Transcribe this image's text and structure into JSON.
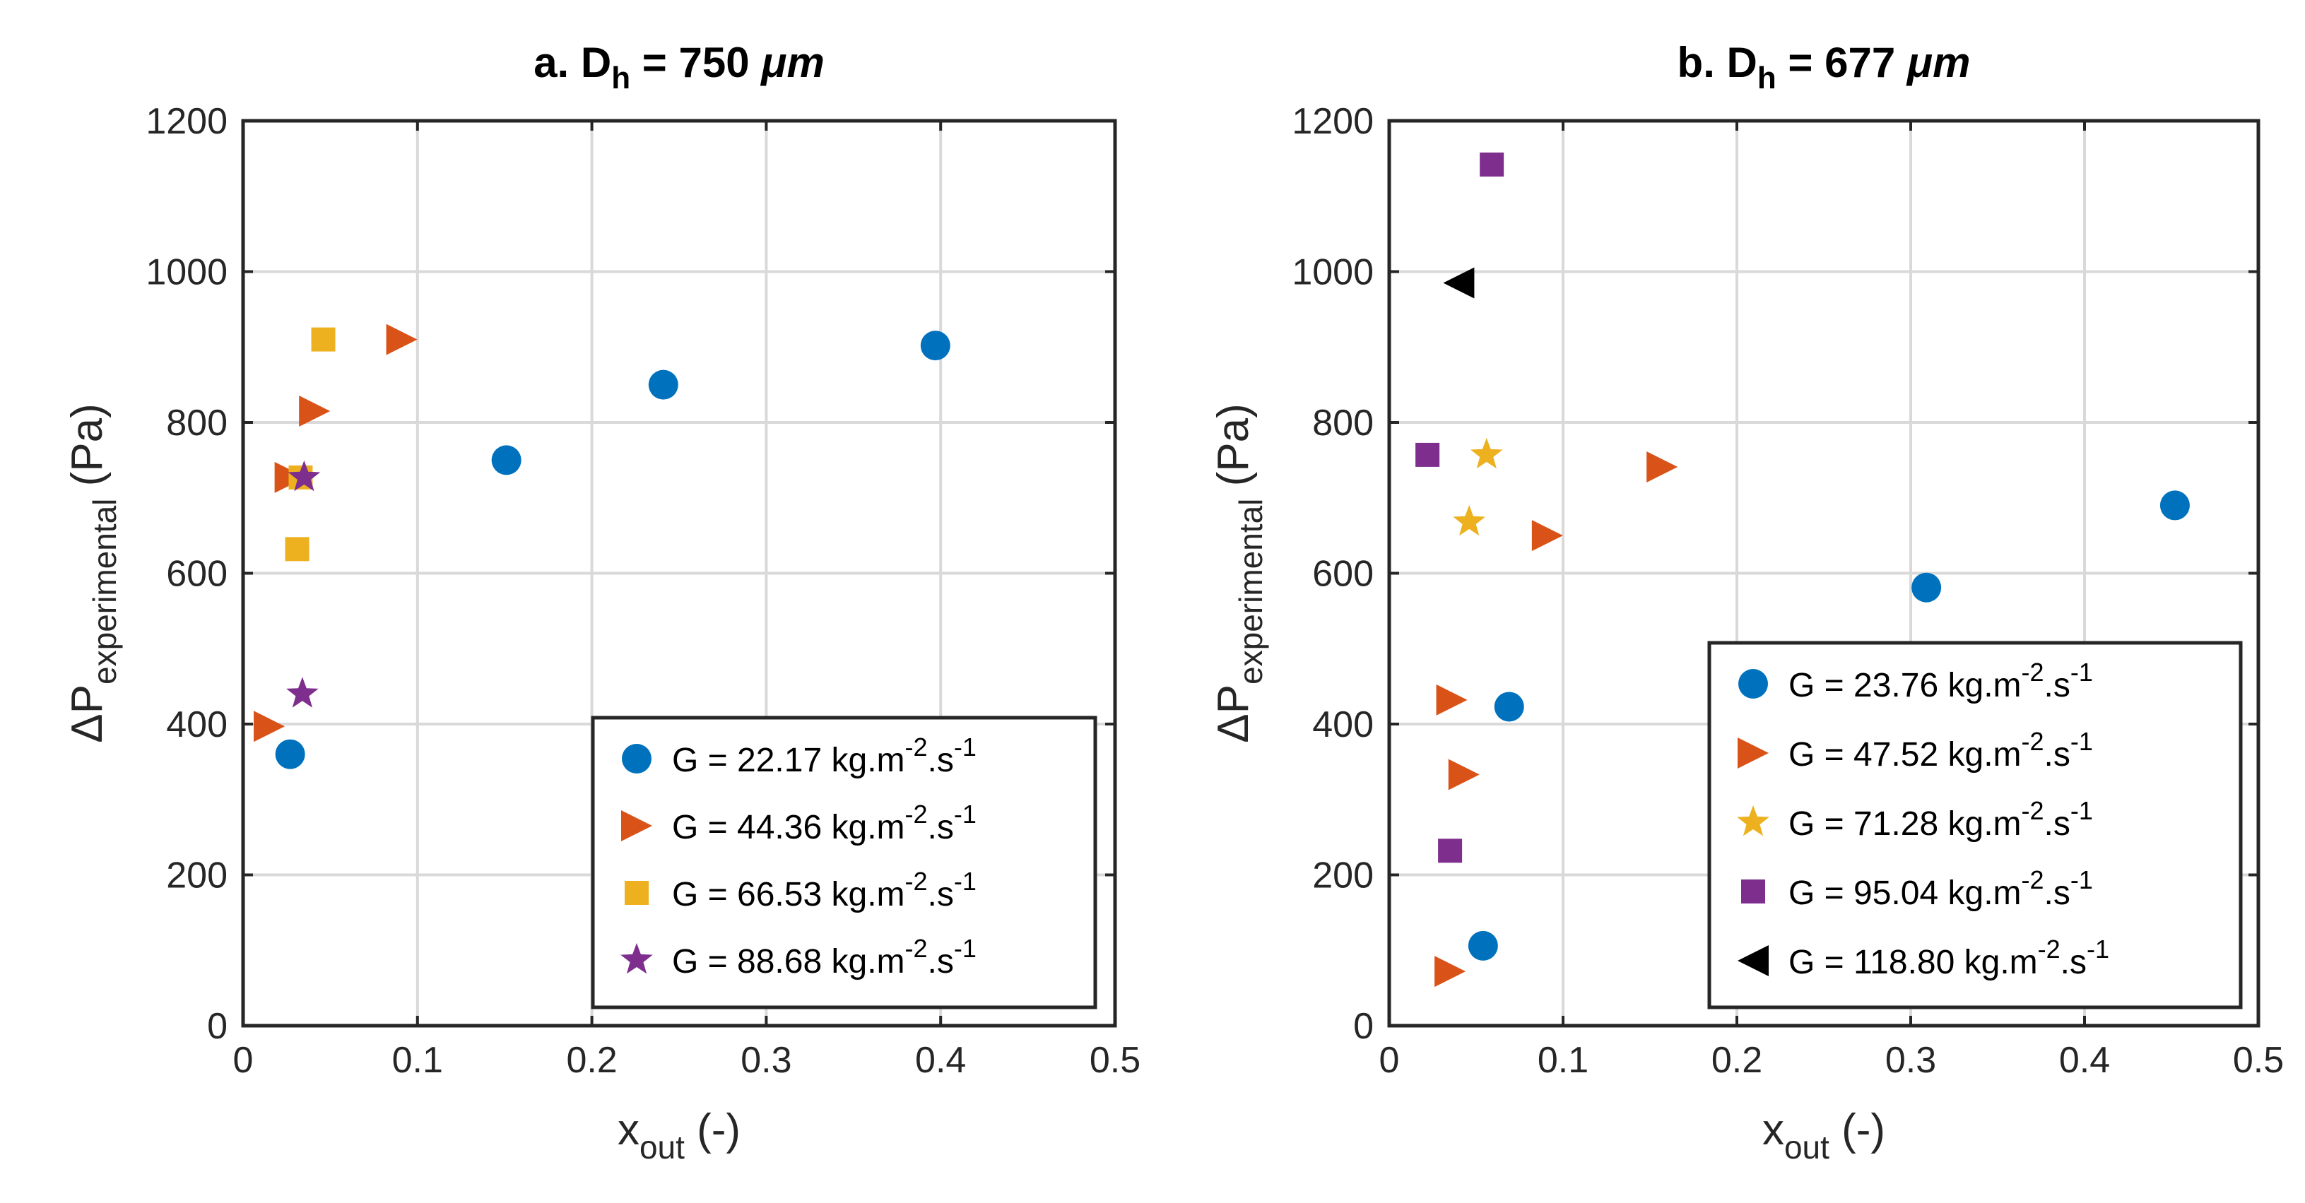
{
  "chart_data": [
    {
      "type": "scatter",
      "title": {
        "prefix": "a. D",
        "sub": "h",
        "suffix": " = 750 ",
        "unit": "μm"
      },
      "xlabel": {
        "main": "x",
        "sub": "out",
        "rest": " (-)"
      },
      "ylabel": {
        "main": "ΔP",
        "sub": "experimental",
        "rest": " (Pa)"
      },
      "xlim": [
        0,
        0.5
      ],
      "ylim": [
        0,
        1200
      ],
      "xticks": [
        0,
        0.1,
        0.2,
        0.3,
        0.4,
        0.5
      ],
      "xtick_labels": [
        "0",
        "0.1",
        "0.2",
        "0.3",
        "0.4",
        "0.5"
      ],
      "yticks": [
        0,
        200,
        400,
        600,
        800,
        1000,
        1200
      ],
      "ytick_labels": [
        "0",
        "200",
        "400",
        "600",
        "800",
        "1000",
        "1200"
      ],
      "grid": true,
      "legend_position": "bottom-right",
      "series": [
        {
          "name": "G = 22.17 kg.m-2.s-1",
          "label_main": "G = 22.17 kg.m",
          "label_sup1": "-2",
          "label_mid": ".s",
          "label_sup2": "-1",
          "marker": "circle",
          "color": "#0072BD",
          "x": [
            0.027,
            0.151,
            0.241,
            0.397
          ],
          "y": [
            360,
            750,
            850,
            902
          ]
        },
        {
          "name": "G = 44.36 kg.m-2.s-1",
          "label_main": "G = 44.36 kg.m",
          "label_sup1": "-2",
          "label_mid": ".s",
          "label_sup2": "-1",
          "marker": "triangle-right",
          "color": "#D95319",
          "x": [
            0.015,
            0.027,
            0.041,
            0.091
          ],
          "y": [
            397,
            727,
            815,
            910
          ]
        },
        {
          "name": "G = 66.53 kg.m-2.s-1",
          "label_main": "G = 66.53 kg.m",
          "label_sup1": "-2",
          "label_mid": ".s",
          "label_sup2": "-1",
          "marker": "square",
          "color": "#EDB120",
          "x": [
            0.031,
            0.033,
            0.046
          ],
          "y": [
            632,
            727,
            910
          ]
        },
        {
          "name": "G = 88.68 kg.m-2.s-1",
          "label_main": "G = 88.68 kg.m",
          "label_sup1": "-2",
          "label_mid": ".s",
          "label_sup2": "-1",
          "marker": "star",
          "color": "#7E2F8E",
          "x": [
            0.034,
            0.035
          ],
          "y": [
            440,
            727
          ]
        }
      ]
    },
    {
      "type": "scatter",
      "title": {
        "prefix": "b. D",
        "sub": "h",
        "suffix": " = 677 ",
        "unit": "μm"
      },
      "xlabel": {
        "main": "x",
        "sub": "out",
        "rest": " (-)"
      },
      "ylabel": {
        "main": "ΔP",
        "sub": "experimental",
        "rest": " (Pa)"
      },
      "xlim": [
        0,
        0.5
      ],
      "ylim": [
        0,
        1200
      ],
      "xticks": [
        0,
        0.1,
        0.2,
        0.3,
        0.4,
        0.5
      ],
      "xtick_labels": [
        "0",
        "0.1",
        "0.2",
        "0.3",
        "0.4",
        "0.5"
      ],
      "yticks": [
        0,
        200,
        400,
        600,
        800,
        1000,
        1200
      ],
      "ytick_labels": [
        "0",
        "200",
        "400",
        "600",
        "800",
        "1000",
        "1200"
      ],
      "grid": true,
      "legend_position": "bottom-right",
      "series": [
        {
          "name": "G = 23.76 kg.m-2.s-1",
          "label_main": "G = 23.76 kg.m",
          "label_sup1": "-2",
          "label_mid": ".s",
          "label_sup2": "-1",
          "marker": "circle",
          "color": "#0072BD",
          "x": [
            0.054,
            0.069,
            0.309,
            0.452
          ],
          "y": [
            106,
            423,
            581,
            690
          ]
        },
        {
          "name": "G = 47.52 kg.m-2.s-1",
          "label_main": "G = 47.52 kg.m",
          "label_sup1": "-2",
          "label_mid": ".s",
          "label_sup2": "-1",
          "marker": "triangle-right",
          "color": "#D95319",
          "x": [
            0.035,
            0.036,
            0.043,
            0.091,
            0.157
          ],
          "y": [
            72,
            432,
            333,
            650,
            741
          ]
        },
        {
          "name": "G = 71.28 kg.m-2.s-1",
          "label_main": "G = 71.28 kg.m",
          "label_sup1": "-2",
          "label_mid": ".s",
          "label_sup2": "-1",
          "marker": "star",
          "color": "#EDB120",
          "x": [
            0.046,
            0.056
          ],
          "y": [
            668,
            757
          ]
        },
        {
          "name": "G = 95.04 kg.m-2.s-1",
          "label_main": "G = 95.04 kg.m",
          "label_sup1": "-2",
          "label_mid": ".s",
          "label_sup2": "-1",
          "marker": "square",
          "color": "#7E2F8E",
          "x": [
            0.022,
            0.035,
            0.059
          ],
          "y": [
            757,
            232,
            1142
          ]
        },
        {
          "name": "G = 118.80 kg.m-2.s-1",
          "label_main": "G = 118.80 kg.m",
          "label_sup1": "-2",
          "label_mid": ".s",
          "label_sup2": "-1",
          "marker": "triangle-left",
          "color": "#000000",
          "x": [
            0.04
          ],
          "y": [
            985
          ]
        }
      ]
    }
  ]
}
